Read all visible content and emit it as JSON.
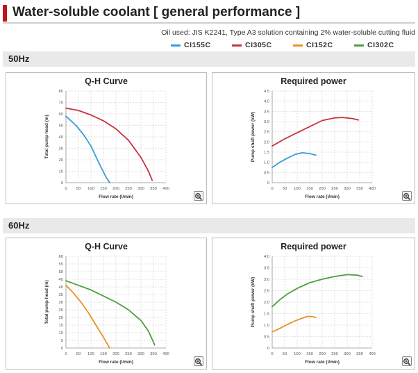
{
  "page": {
    "title": "Water-soluble coolant [ general performance ]",
    "oil_note": "Oil used: JIS K2241, Type A3 solution containing 2% water-soluble cutting fluid"
  },
  "legend": [
    {
      "label": "CI155C",
      "color": "#3a9bd5"
    },
    {
      "label": "CI305C",
      "color": "#c8323a"
    },
    {
      "label": "CI152C",
      "color": "#e8922c"
    },
    {
      "label": "CI302C",
      "color": "#4a9e3c"
    }
  ],
  "sections": [
    {
      "label": "50Hz"
    },
    {
      "label": "60Hz"
    }
  ],
  "chart_data": [
    {
      "type": "line",
      "title": "Q-H Curve",
      "xlabel": "Flow rate (l/min)",
      "ylabel": "Total pump head (m)",
      "xlim": [
        0,
        400
      ],
      "ylim": [
        0,
        80
      ],
      "xticks": [
        "0",
        "50",
        "100",
        "150",
        "200",
        "250",
        "300",
        "350",
        "400"
      ],
      "yticks": [
        "0",
        "10",
        "20",
        "30",
        "40",
        "50",
        "60",
        "70",
        "80"
      ],
      "grid": true,
      "series": [
        {
          "name": "CI155C",
          "color": "#3a9bd5",
          "x": [
            0,
            40,
            70,
            100,
            130,
            160,
            175
          ],
          "y": [
            58,
            50,
            42,
            32,
            18,
            5,
            0
          ]
        },
        {
          "name": "CI305C",
          "color": "#c8323a",
          "x": [
            0,
            50,
            100,
            150,
            200,
            250,
            300,
            330,
            345
          ],
          "y": [
            65,
            63,
            59,
            54,
            47,
            37,
            22,
            10,
            2
          ]
        }
      ]
    },
    {
      "type": "line",
      "title": "Required power",
      "xlabel": "Flow rate (l/min)",
      "ylabel": "Pump shaft power (kW)",
      "xlim": [
        0,
        400
      ],
      "ylim": [
        0,
        4.5
      ],
      "xticks": [
        "0",
        "50",
        "100",
        "150",
        "200",
        "250",
        "300",
        "350",
        "400"
      ],
      "yticks": [
        "0",
        "0.5",
        "1.0",
        "1.5",
        "2.0",
        "2.5",
        "3.0",
        "3.5",
        "4.0",
        "4.5"
      ],
      "grid": true,
      "series": [
        {
          "name": "CI155C",
          "color": "#3a9bd5",
          "x": [
            0,
            30,
            60,
            90,
            120,
            150,
            175
          ],
          "y": [
            0.75,
            1.0,
            1.2,
            1.38,
            1.47,
            1.43,
            1.35
          ]
        },
        {
          "name": "CI305C",
          "color": "#c8323a",
          "x": [
            0,
            50,
            100,
            150,
            200,
            250,
            280,
            320,
            345
          ],
          "y": [
            1.8,
            2.15,
            2.45,
            2.75,
            3.05,
            3.18,
            3.2,
            3.15,
            3.08
          ]
        }
      ]
    },
    {
      "type": "line",
      "title": "Q-H Curve",
      "xlabel": "Flow rate (l/min)",
      "ylabel": "Total pump head (m)",
      "xlim": [
        0,
        400
      ],
      "ylim": [
        0,
        60
      ],
      "xticks": [
        "0",
        "50",
        "100",
        "150",
        "200",
        "250",
        "300",
        "350",
        "400"
      ],
      "yticks": [
        "0",
        "5",
        "10",
        "15",
        "20",
        "25",
        "30",
        "35",
        "40",
        "45",
        "50",
        "55",
        "60"
      ],
      "grid": true,
      "series": [
        {
          "name": "CI152C",
          "color": "#e8922c",
          "x": [
            0,
            30,
            60,
            90,
            120,
            150,
            175
          ],
          "y": [
            41,
            36,
            30,
            23,
            15,
            7,
            0
          ]
        },
        {
          "name": "CI302C",
          "color": "#4a9e3c",
          "x": [
            0,
            50,
            100,
            150,
            200,
            250,
            300,
            330,
            355
          ],
          "y": [
            44,
            41,
            38,
            34,
            30,
            25,
            18,
            11,
            2
          ]
        }
      ]
    },
    {
      "type": "line",
      "title": "Required power",
      "xlabel": "Flow rate (l/min)",
      "ylabel": "Pump shaft power (kW)",
      "xlim": [
        0,
        400
      ],
      "ylim": [
        0,
        4.0
      ],
      "xticks": [
        "0",
        "50",
        "100",
        "150",
        "200",
        "250",
        "300",
        "350",
        "400"
      ],
      "yticks": [
        "0",
        "0.5",
        "1.0",
        "1.5",
        "2.0",
        "2.5",
        "3.0",
        "3.5",
        "4.0"
      ],
      "grid": true,
      "series": [
        {
          "name": "CI152C",
          "color": "#e8922c",
          "x": [
            0,
            30,
            60,
            90,
            120,
            140,
            160,
            175
          ],
          "y": [
            0.7,
            0.85,
            1.02,
            1.18,
            1.3,
            1.38,
            1.37,
            1.33
          ]
        },
        {
          "name": "CI302C",
          "color": "#4a9e3c",
          "x": [
            0,
            30,
            60,
            100,
            150,
            200,
            250,
            300,
            340,
            360
          ],
          "y": [
            1.8,
            2.1,
            2.35,
            2.6,
            2.85,
            3.0,
            3.12,
            3.2,
            3.18,
            3.12
          ]
        }
      ]
    }
  ]
}
